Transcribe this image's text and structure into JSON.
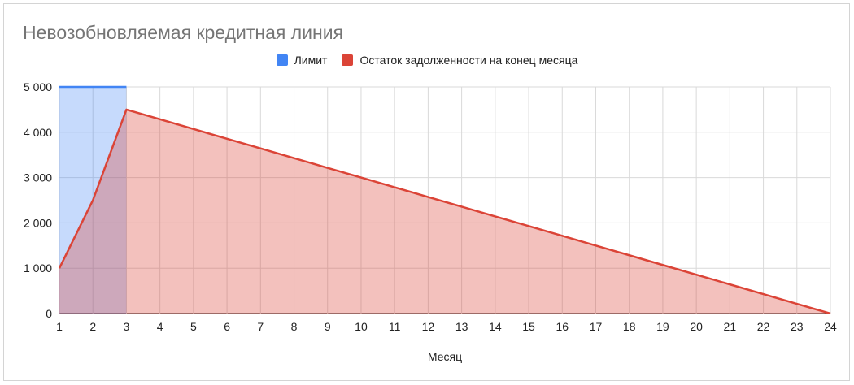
{
  "chart_data": {
    "type": "area",
    "title": "Невозобновляемая кредитная линия",
    "xlabel": "Месяц",
    "ylabel": "",
    "x": [
      1,
      2,
      3,
      4,
      5,
      6,
      7,
      8,
      9,
      10,
      11,
      12,
      13,
      14,
      15,
      16,
      17,
      18,
      19,
      20,
      21,
      22,
      23,
      24
    ],
    "xlim": [
      1,
      24
    ],
    "ylim": [
      0,
      5000
    ],
    "yticks": [
      0,
      1000,
      2000,
      3000,
      4000,
      5000
    ],
    "ytick_labels": [
      "0",
      "1 000",
      "2 000",
      "3 000",
      "4 000",
      "5 000"
    ],
    "grid": true,
    "legend_position": "top-center",
    "series": [
      {
        "name": "Лимит",
        "color": "#4285f4",
        "x": [
          1,
          2,
          3
        ],
        "values": [
          5000,
          5000,
          5000
        ]
      },
      {
        "name": "Остаток задолженности на конец месяца",
        "color": "#db4437",
        "x": [
          1,
          2,
          3,
          4,
          5,
          6,
          7,
          8,
          9,
          10,
          11,
          12,
          13,
          14,
          15,
          16,
          17,
          18,
          19,
          20,
          21,
          22,
          23,
          24
        ],
        "values": [
          1000,
          2500,
          4500,
          4286,
          4071,
          3857,
          3643,
          3429,
          3214,
          3000,
          2786,
          2571,
          2357,
          2143,
          1929,
          1714,
          1500,
          1286,
          1071,
          857,
          643,
          429,
          214,
          0
        ]
      }
    ]
  }
}
